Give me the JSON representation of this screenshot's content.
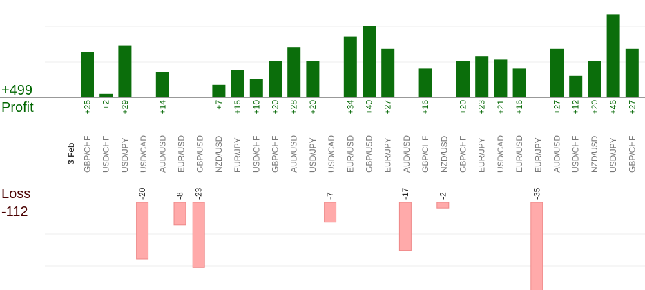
{
  "summary": {
    "profit_total": "+499",
    "profit_label": "Profit",
    "loss_label": "Loss",
    "loss_total": "-112",
    "date_label": "3 Feb"
  },
  "chart_data": {
    "type": "bar",
    "title": "",
    "xlabel": "",
    "ylabel": "",
    "grid": true,
    "colors": {
      "profit": "#0b6e0b",
      "profit_label": "#006600",
      "loss": "#ffaaaa",
      "loss_label": "#222222",
      "axis_label": "#777777"
    },
    "categories": [
      "GBP/CHF",
      "USD/CHF",
      "USD/JPY",
      "USD/CAD",
      "AUD/USD",
      "EUR/USD",
      "GBP/USD",
      "NZD/USD",
      "EUR/JPY",
      "USD/CHF",
      "GBP/CHF",
      "AUD/USD",
      "USD/JPY",
      "USD/CAD",
      "EUR/USD",
      "GBP/USD",
      "EUR/JPY",
      "AUD/USD",
      "GBP/CHF",
      "NZD/USD",
      "GBP/CHF",
      "EUR/JPY",
      "USD/CAD",
      "EUR/USD",
      "EUR/JPY",
      "AUD/USD",
      "USD/CHF",
      "NZD/USD",
      "USD/JPY",
      "GBP/CHF"
    ],
    "values": [
      25,
      2,
      29,
      -20,
      14,
      -8,
      -23,
      7,
      15,
      10,
      20,
      28,
      20,
      -7,
      34,
      40,
      27,
      -17,
      16,
      -2,
      20,
      23,
      21,
      16,
      -35,
      27,
      12,
      20,
      46,
      27
    ],
    "value_labels": [
      "+25",
      "+2",
      "+29",
      "-20",
      "+14",
      "-8",
      "-23",
      "+7",
      "+15",
      "+10",
      "+20",
      "+28",
      "+20",
      "-7",
      "+34",
      "+40",
      "+27",
      "-17",
      "+16",
      "-2",
      "+20",
      "+23",
      "+21",
      "+16",
      "-35",
      "+27",
      "+12",
      "+20",
      "+46",
      "+27"
    ]
  }
}
